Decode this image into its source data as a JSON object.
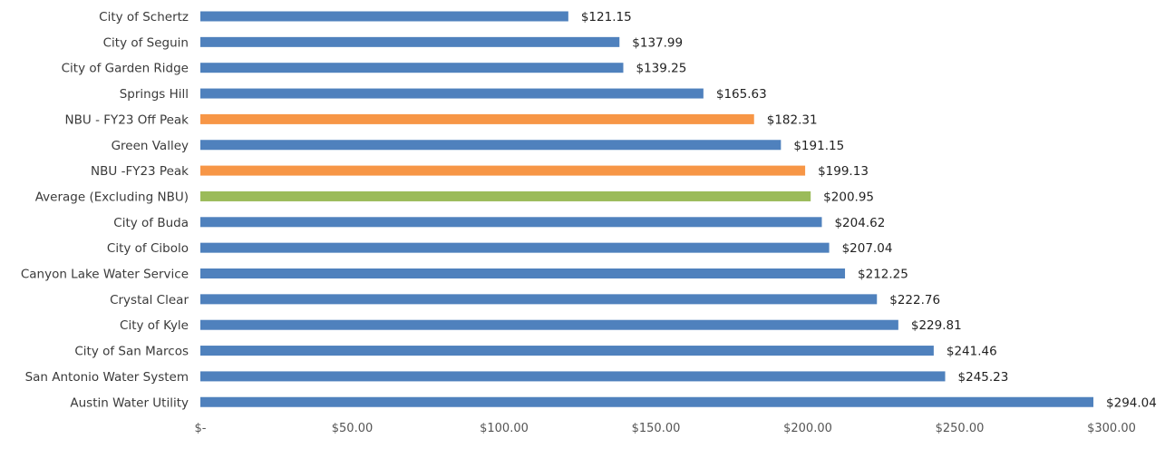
{
  "chart_data": {
    "type": "bar",
    "orientation": "horizontal",
    "title": "",
    "xlabel": "",
    "ylabel": "",
    "xlim": [
      0,
      300
    ],
    "x_ticks": [
      0,
      50,
      100,
      150,
      200,
      250,
      300
    ],
    "x_tick_labels": [
      "$-",
      "$50.00",
      "$100.00",
      "$150.00",
      "$200.00",
      "$250.00",
      "$300.00"
    ],
    "grid": false,
    "legend": "none",
    "categories": [
      "City of Schertz",
      "City of Seguin",
      "City of Garden Ridge",
      "Springs Hill",
      "NBU - FY23 Off Peak",
      "Green Valley",
      "NBU -FY23 Peak",
      "Average (Excluding NBU)",
      "City of Buda",
      "City of Cibolo",
      "Canyon Lake Water Service",
      "Crystal Clear",
      "City of Kyle",
      "City of San Marcos",
      "San Antonio Water System",
      "Austin Water Utility"
    ],
    "values": [
      121.15,
      137.99,
      139.25,
      165.63,
      182.31,
      191.15,
      199.13,
      200.95,
      204.62,
      207.04,
      212.25,
      222.76,
      229.81,
      241.46,
      245.23,
      294.04
    ],
    "value_labels": [
      "$121.15",
      "$137.99",
      "$139.25",
      "$165.63",
      "$182.31",
      "$191.15",
      "$199.13",
      "$200.95",
      "$204.62",
      "$207.04",
      "$212.25",
      "$222.76",
      "$229.81",
      "$241.46",
      "$245.23",
      "$294.04"
    ],
    "bar_colors": [
      "#4f81bd",
      "#4f81bd",
      "#4f81bd",
      "#4f81bd",
      "#f79646",
      "#4f81bd",
      "#f79646",
      "#9bbb59",
      "#4f81bd",
      "#4f81bd",
      "#4f81bd",
      "#4f81bd",
      "#4f81bd",
      "#4f81bd",
      "#4f81bd",
      "#4f81bd"
    ]
  }
}
